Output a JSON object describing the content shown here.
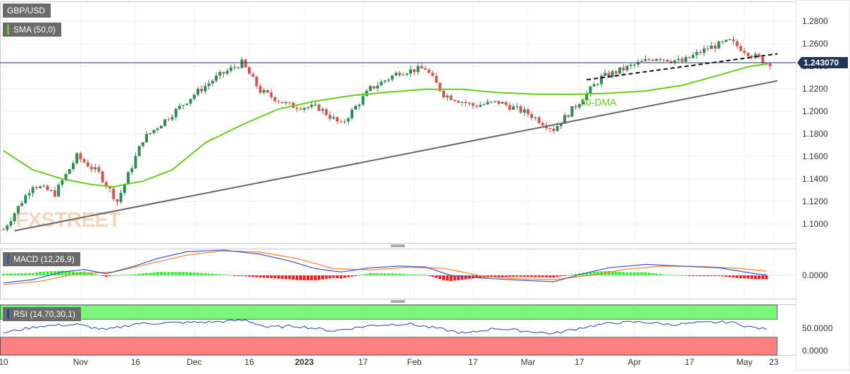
{
  "indicators": {
    "symbol": "GBP/USD",
    "sma": "SMA (50,0)",
    "macd": "MACD (12,26,9)",
    "rsi": "RSI (14,70,30,1)"
  },
  "annotations": {
    "sma_label": "50-DMA",
    "watermark": "FXSTREET"
  },
  "colors": {
    "up": "#2e8b57",
    "down": "#d9534f",
    "sma": "#66cc1a",
    "macd_line": "#3355cc",
    "signal_line": "#ff7f27",
    "hist_pos": "#33ee33",
    "hist_neg": "#ff1a1a",
    "rsi_overbought": "#7cf57c",
    "rsi_oversold": "#ff8080",
    "price_badge": "#1f3557"
  },
  "chart_data": [
    {
      "type": "candlestick",
      "name": "price",
      "symbol": "GBP/USD",
      "y_ticks": [
        "1.2800",
        "1.2600",
        "1.2400",
        "1.2200",
        "1.2000",
        "1.1800",
        "1.1600",
        "1.1400",
        "1.1200",
        "1.1000"
      ],
      "ylim": [
        1.085,
        1.291
      ],
      "x_ticks": [
        "10",
        "Nov",
        "16",
        "Dec",
        "16",
        "2023",
        "17",
        "Feb",
        "17",
        "Mar",
        "17",
        "Apr",
        "17",
        "May",
        "23"
      ],
      "current_price": "1.243070",
      "horizontal_level": 1.2431,
      "ohlc_anchors": [
        {
          "t": 0,
          "c": 1.095
        },
        {
          "t": 8,
          "c": 1.135
        },
        {
          "t": 14,
          "c": 1.127
        },
        {
          "t": 20,
          "c": 1.16
        },
        {
          "t": 26,
          "c": 1.145
        },
        {
          "t": 31,
          "c": 1.12
        },
        {
          "t": 38,
          "c": 1.175
        },
        {
          "t": 45,
          "c": 1.195
        },
        {
          "t": 52,
          "c": 1.215
        },
        {
          "t": 58,
          "c": 1.23
        },
        {
          "t": 65,
          "c": 1.243
        },
        {
          "t": 70,
          "c": 1.218
        },
        {
          "t": 78,
          "c": 1.205
        },
        {
          "t": 86,
          "c": 1.203
        },
        {
          "t": 92,
          "c": 1.188
        },
        {
          "t": 100,
          "c": 1.22
        },
        {
          "t": 108,
          "c": 1.235
        },
        {
          "t": 115,
          "c": 1.238
        },
        {
          "t": 120,
          "c": 1.215
        },
        {
          "t": 128,
          "c": 1.205
        },
        {
          "t": 135,
          "c": 1.208
        },
        {
          "t": 143,
          "c": 1.198
        },
        {
          "t": 150,
          "c": 1.184
        },
        {
          "t": 156,
          "c": 1.205
        },
        {
          "t": 163,
          "c": 1.23
        },
        {
          "t": 171,
          "c": 1.24
        },
        {
          "t": 178,
          "c": 1.248
        },
        {
          "t": 185,
          "c": 1.244
        },
        {
          "t": 192,
          "c": 1.256
        },
        {
          "t": 198,
          "c": 1.262
        },
        {
          "t": 203,
          "c": 1.252
        },
        {
          "t": 208,
          "c": 1.2431
        }
      ],
      "sma50": [
        {
          "t": 0,
          "v": 1.165
        },
        {
          "t": 8,
          "v": 1.148
        },
        {
          "t": 16,
          "v": 1.14
        },
        {
          "t": 24,
          "v": 1.135
        },
        {
          "t": 30,
          "v": 1.133
        },
        {
          "t": 38,
          "v": 1.138
        },
        {
          "t": 46,
          "v": 1.148
        },
        {
          "t": 55,
          "v": 1.172
        },
        {
          "t": 65,
          "v": 1.188
        },
        {
          "t": 75,
          "v": 1.202
        },
        {
          "t": 85,
          "v": 1.209
        },
        {
          "t": 95,
          "v": 1.214
        },
        {
          "t": 105,
          "v": 1.217
        },
        {
          "t": 115,
          "v": 1.2195
        },
        {
          "t": 125,
          "v": 1.2195
        },
        {
          "t": 135,
          "v": 1.2165
        },
        {
          "t": 145,
          "v": 1.2152
        },
        {
          "t": 155,
          "v": 1.215
        },
        {
          "t": 165,
          "v": 1.216
        },
        {
          "t": 175,
          "v": 1.218
        },
        {
          "t": 185,
          "v": 1.223
        },
        {
          "t": 195,
          "v": 1.232
        },
        {
          "t": 203,
          "v": 1.2395
        },
        {
          "t": 208,
          "v": 1.242
        }
      ],
      "trendlines": [
        {
          "style": "solid",
          "from": {
            "t": 3,
            "v": 1.094
          },
          "to": {
            "t": 211,
            "v": 1.227
          }
        },
        {
          "style": "dashed",
          "from": {
            "t": 159,
            "v": 1.228
          },
          "to": {
            "t": 211,
            "v": 1.251
          }
        }
      ]
    },
    {
      "type": "macd",
      "name": "MACD (12,26,9)",
      "y_ticks": [
        "0.0000"
      ],
      "ylim": [
        -0.022,
        0.063
      ],
      "macd": [
        {
          "t": 0,
          "v": -0.018
        },
        {
          "t": 8,
          "v": -0.01
        },
        {
          "t": 16,
          "v": 0.008
        },
        {
          "t": 22,
          "v": 0.014
        },
        {
          "t": 28,
          "v": 0.004
        },
        {
          "t": 35,
          "v": 0.02
        },
        {
          "t": 42,
          "v": 0.04
        },
        {
          "t": 50,
          "v": 0.056
        },
        {
          "t": 60,
          "v": 0.06
        },
        {
          "t": 70,
          "v": 0.05
        },
        {
          "t": 78,
          "v": 0.034
        },
        {
          "t": 85,
          "v": 0.016
        },
        {
          "t": 92,
          "v": 0.008
        },
        {
          "t": 100,
          "v": 0.018
        },
        {
          "t": 108,
          "v": 0.022
        },
        {
          "t": 115,
          "v": 0.02
        },
        {
          "t": 122,
          "v": 0.0
        },
        {
          "t": 130,
          "v": -0.006
        },
        {
          "t": 140,
          "v": -0.011
        },
        {
          "t": 150,
          "v": -0.015
        },
        {
          "t": 158,
          "v": 0.004
        },
        {
          "t": 165,
          "v": 0.018
        },
        {
          "t": 175,
          "v": 0.026
        },
        {
          "t": 185,
          "v": 0.022
        },
        {
          "t": 195,
          "v": 0.018
        },
        {
          "t": 205,
          "v": 0.004
        },
        {
          "t": 208,
          "v": 0.001
        }
      ],
      "signal": [
        {
          "t": 0,
          "v": -0.022
        },
        {
          "t": 10,
          "v": -0.014
        },
        {
          "t": 20,
          "v": 0.004
        },
        {
          "t": 30,
          "v": 0.008
        },
        {
          "t": 40,
          "v": 0.028
        },
        {
          "t": 50,
          "v": 0.048
        },
        {
          "t": 60,
          "v": 0.058
        },
        {
          "t": 70,
          "v": 0.055
        },
        {
          "t": 80,
          "v": 0.04
        },
        {
          "t": 90,
          "v": 0.016
        },
        {
          "t": 100,
          "v": 0.013
        },
        {
          "t": 110,
          "v": 0.019
        },
        {
          "t": 120,
          "v": 0.017
        },
        {
          "t": 130,
          "v": -0.001
        },
        {
          "t": 140,
          "v": -0.008
        },
        {
          "t": 150,
          "v": -0.01
        },
        {
          "t": 160,
          "v": 0.0
        },
        {
          "t": 170,
          "v": 0.015
        },
        {
          "t": 180,
          "v": 0.022
        },
        {
          "t": 190,
          "v": 0.021
        },
        {
          "t": 200,
          "v": 0.017
        },
        {
          "t": 208,
          "v": 0.01
        }
      ]
    },
    {
      "type": "rsi",
      "name": "RSI (14,70,30,1)",
      "y_ticks": [
        "50.0000",
        "0.0000"
      ],
      "ylim": [
        0,
        100
      ],
      "overbought": 70,
      "oversold": 30,
      "series": [
        {
          "t": 0,
          "v": 40
        },
        {
          "t": 10,
          "v": 55
        },
        {
          "t": 20,
          "v": 58
        },
        {
          "t": 28,
          "v": 46
        },
        {
          "t": 36,
          "v": 60
        },
        {
          "t": 46,
          "v": 62
        },
        {
          "t": 58,
          "v": 64
        },
        {
          "t": 66,
          "v": 68
        },
        {
          "t": 72,
          "v": 52
        },
        {
          "t": 80,
          "v": 55
        },
        {
          "t": 90,
          "v": 44
        },
        {
          "t": 100,
          "v": 56
        },
        {
          "t": 110,
          "v": 60
        },
        {
          "t": 118,
          "v": 50
        },
        {
          "t": 126,
          "v": 38
        },
        {
          "t": 134,
          "v": 50
        },
        {
          "t": 142,
          "v": 44
        },
        {
          "t": 150,
          "v": 38
        },
        {
          "t": 158,
          "v": 52
        },
        {
          "t": 166,
          "v": 62
        },
        {
          "t": 174,
          "v": 64
        },
        {
          "t": 182,
          "v": 58
        },
        {
          "t": 190,
          "v": 62
        },
        {
          "t": 198,
          "v": 64
        },
        {
          "t": 204,
          "v": 52
        },
        {
          "t": 208,
          "v": 48
        }
      ]
    }
  ]
}
